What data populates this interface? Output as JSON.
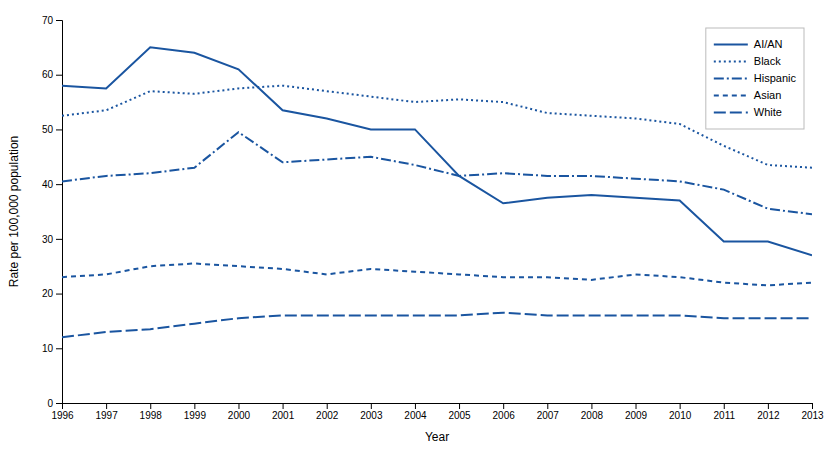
{
  "chart_data": {
    "type": "line",
    "xlabel": "Year",
    "ylabel": "Rate per 100,000 population",
    "x": [
      1996,
      1997,
      1998,
      1999,
      2000,
      2001,
      2002,
      2003,
      2004,
      2005,
      2006,
      2007,
      2008,
      2009,
      2010,
      2011,
      2012,
      2013
    ],
    "xlim": [
      1996,
      2013
    ],
    "xticks": [
      1996,
      1997,
      1998,
      1999,
      2000,
      2001,
      2002,
      2003,
      2004,
      2005,
      2006,
      2007,
      2008,
      2009,
      2010,
      2011,
      2012,
      2013
    ],
    "ylim": [
      0,
      70
    ],
    "yticks": [
      0,
      10,
      20,
      30,
      40,
      50,
      60,
      70
    ],
    "color": "#1a55a0",
    "legend": "upper right",
    "series": [
      {
        "name": "AI/AN",
        "line_style": "solid",
        "values": [
          58,
          57.5,
          65,
          64,
          61,
          53.5,
          52,
          50,
          50,
          41.5,
          36.5,
          37.5,
          38,
          37.5,
          37,
          29.5,
          29.5,
          27
        ]
      },
      {
        "name": "Black",
        "line_style": "dotted",
        "values": [
          52.5,
          53.5,
          57,
          56.5,
          57.5,
          58,
          57,
          56,
          55,
          55.5,
          55,
          53,
          52.5,
          52,
          51,
          47,
          43.5,
          43
        ]
      },
      {
        "name": "Hispanic",
        "line_style": "dashdot",
        "values": [
          40.5,
          41.5,
          42,
          43,
          49.5,
          44,
          44.5,
          45,
          43.5,
          41.5,
          42,
          41.5,
          41.5,
          41,
          40.5,
          39,
          35.5,
          34.5
        ]
      },
      {
        "name": "Asian",
        "line_style": "dashed",
        "values": [
          23,
          23.5,
          25,
          25.5,
          25,
          24.5,
          23.5,
          24.5,
          24,
          23.5,
          23,
          23,
          22.5,
          23.5,
          23,
          22,
          21.5,
          22
        ]
      },
      {
        "name": "White",
        "line_style": "longdash",
        "values": [
          12,
          13,
          13.5,
          14.5,
          15.5,
          16,
          16,
          16,
          16,
          16,
          16.5,
          16,
          16,
          16,
          16,
          15.5,
          15.5,
          15.5
        ]
      }
    ]
  }
}
